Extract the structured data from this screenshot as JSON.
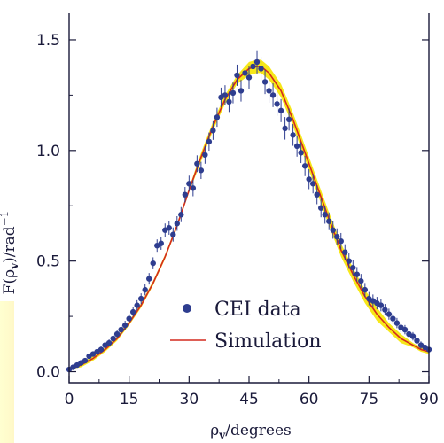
{
  "chart_data": {
    "type": "scatter",
    "ylabel_prefix": "F(",
    "ylabel_var": "ρ",
    "ylabel_sub": "v",
    "ylabel_suffix": ")/rad",
    "ylabel_sup": "−1",
    "xlabel_var": "ρ",
    "xlabel_sub": "v",
    "xlabel_suffix": "/degrees",
    "xlim": [
      0,
      90
    ],
    "ylim": [
      -0.05,
      1.62
    ],
    "x_ticks": [
      0,
      15,
      30,
      45,
      60,
      75,
      90
    ],
    "x_tick_labels": [
      "0",
      "15",
      "30",
      "45",
      "60",
      "75",
      "90"
    ],
    "y_ticks": [
      0.0,
      0.5,
      1.0,
      1.5
    ],
    "y_tick_labels": [
      "0.0",
      "0.5",
      "1.0",
      "1.5"
    ],
    "legend": {
      "position": "lower-center",
      "entries": [
        "CEI data",
        "Simulation"
      ]
    },
    "colors": {
      "data": "#2e3d8f",
      "simulation": "#d42a1f",
      "band": "#f5e400",
      "axis": "#1a1a3a"
    },
    "series": [
      {
        "name": "CEI data",
        "kind": "points",
        "x": [
          0.0,
          1.0,
          2.0,
          3.0,
          4.0,
          5.0,
          6.0,
          7.0,
          8.0,
          9.0,
          10.0,
          11.0,
          12.0,
          13.0,
          14.0,
          15.0,
          16.0,
          17.0,
          18.0,
          19.0,
          20.0,
          21.0,
          22.0,
          23.0,
          24.0,
          25.0,
          26.0,
          27.0,
          28.0,
          29.0,
          30.0,
          31.0,
          32.0,
          33.0,
          34.0,
          35.0,
          36.0,
          37.0,
          38.0,
          39.0,
          40.0,
          41.0,
          42.0,
          43.0,
          44.0,
          45.0,
          46.0,
          47.0,
          48.0,
          49.0,
          50.0,
          51.0,
          52.0,
          53.0,
          54.0,
          55.0,
          56.0,
          57.0,
          58.0,
          59.0,
          60.0,
          61.0,
          62.0,
          63.0,
          64.0,
          65.0,
          66.0,
          67.0,
          68.0,
          69.0,
          70.0,
          71.0,
          72.0,
          73.0,
          74.0,
          75.0,
          76.0,
          77.0,
          78.0,
          79.0,
          80.0,
          81.0,
          82.0,
          83.0,
          84.0,
          85.0,
          86.0,
          87.0,
          88.0,
          89.0,
          90.0
        ],
        "y": [
          0.01,
          0.02,
          0.03,
          0.04,
          0.05,
          0.07,
          0.08,
          0.09,
          0.1,
          0.12,
          0.13,
          0.15,
          0.17,
          0.19,
          0.21,
          0.24,
          0.27,
          0.3,
          0.33,
          0.37,
          0.42,
          0.49,
          0.57,
          0.58,
          0.64,
          0.65,
          0.62,
          0.67,
          0.71,
          0.8,
          0.85,
          0.83,
          0.94,
          0.91,
          0.98,
          1.04,
          1.09,
          1.15,
          1.24,
          1.25,
          1.22,
          1.26,
          1.34,
          1.27,
          1.35,
          1.33,
          1.38,
          1.4,
          1.37,
          1.31,
          1.27,
          1.25,
          1.21,
          1.18,
          1.1,
          1.14,
          1.07,
          1.02,
          0.99,
          0.93,
          0.87,
          0.85,
          0.8,
          0.74,
          0.71,
          0.68,
          0.64,
          0.61,
          0.59,
          0.54,
          0.5,
          0.47,
          0.44,
          0.41,
          0.37,
          0.33,
          0.32,
          0.31,
          0.3,
          0.28,
          0.26,
          0.24,
          0.22,
          0.2,
          0.19,
          0.17,
          0.16,
          0.14,
          0.12,
          0.11,
          0.1
        ],
        "err": [
          0.006,
          0.007,
          0.008,
          0.009,
          0.01,
          0.011,
          0.012,
          0.013,
          0.014,
          0.015,
          0.016,
          0.017,
          0.018,
          0.019,
          0.02,
          0.021,
          0.022,
          0.023,
          0.024,
          0.025,
          0.026,
          0.027,
          0.028,
          0.029,
          0.03,
          0.031,
          0.032,
          0.033,
          0.034,
          0.035,
          0.036,
          0.037,
          0.038,
          0.039,
          0.04,
          0.041,
          0.042,
          0.043,
          0.044,
          0.045,
          0.046,
          0.047,
          0.048,
          0.049,
          0.05,
          0.051,
          0.052,
          0.053,
          0.054,
          0.055,
          0.055,
          0.054,
          0.053,
          0.052,
          0.051,
          0.05,
          0.049,
          0.048,
          0.047,
          0.046,
          0.045,
          0.044,
          0.043,
          0.042,
          0.041,
          0.04,
          0.039,
          0.038,
          0.037,
          0.036,
          0.035,
          0.034,
          0.033,
          0.032,
          0.031,
          0.03,
          0.029,
          0.028,
          0.027,
          0.026,
          0.025,
          0.024,
          0.023,
          0.022,
          0.021,
          0.02,
          0.019,
          0.018,
          0.017,
          0.016,
          0.015
        ]
      },
      {
        "name": "Simulation",
        "kind": "line",
        "x": [
          0,
          3,
          6,
          9,
          12,
          15,
          18,
          21,
          24,
          27,
          30,
          33,
          36,
          39,
          42,
          45,
          47,
          48,
          50,
          53,
          56,
          59,
          62,
          65,
          68,
          71,
          74,
          77,
          80,
          83,
          86,
          88,
          90
        ],
        "y": [
          0.01,
          0.03,
          0.06,
          0.1,
          0.15,
          0.22,
          0.3,
          0.4,
          0.52,
          0.66,
          0.82,
          0.97,
          1.11,
          1.23,
          1.32,
          1.37,
          1.38,
          1.38,
          1.35,
          1.27,
          1.14,
          0.99,
          0.84,
          0.69,
          0.55,
          0.44,
          0.34,
          0.26,
          0.2,
          0.15,
          0.12,
          0.1,
          0.09
        ],
        "band_upper": [
          0.02,
          0.04,
          0.07,
          0.11,
          0.16,
          0.23,
          0.31,
          0.41,
          0.53,
          0.67,
          0.83,
          0.99,
          1.13,
          1.25,
          1.34,
          1.4,
          1.41,
          1.41,
          1.38,
          1.3,
          1.17,
          1.02,
          0.87,
          0.72,
          0.58,
          0.47,
          0.37,
          0.29,
          0.22,
          0.17,
          0.13,
          0.11,
          0.1
        ],
        "band_lower": [
          0.01,
          0.02,
          0.05,
          0.09,
          0.14,
          0.21,
          0.29,
          0.39,
          0.51,
          0.65,
          0.81,
          0.95,
          1.09,
          1.21,
          1.3,
          1.34,
          1.35,
          1.35,
          1.32,
          1.24,
          1.11,
          0.96,
          0.81,
          0.66,
          0.52,
          0.41,
          0.31,
          0.23,
          0.18,
          0.13,
          0.11,
          0.09,
          0.08
        ]
      }
    ]
  }
}
